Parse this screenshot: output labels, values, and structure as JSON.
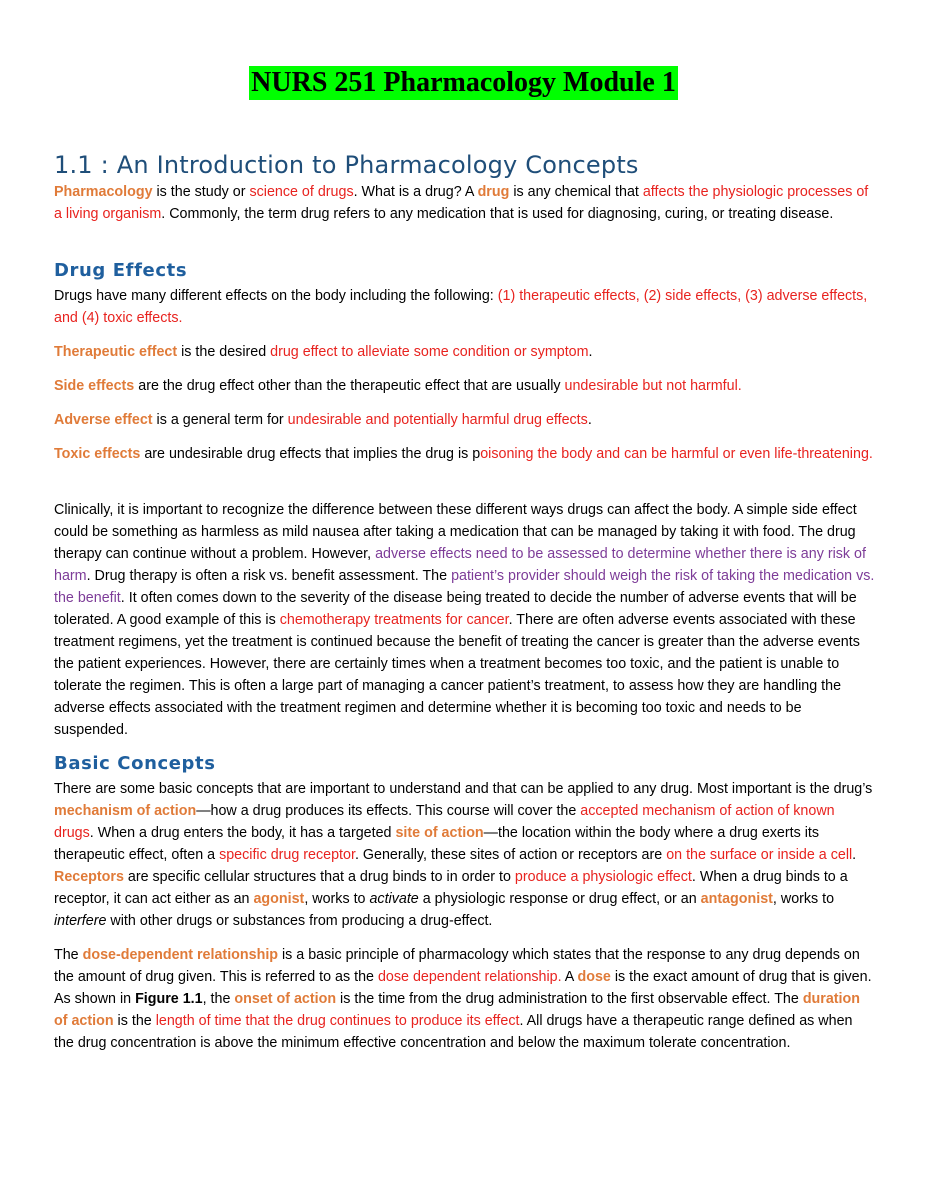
{
  "title": "NURS 251 Pharmacology Module 1",
  "section_heading": "1.1 : An Introduction to Pharmacology Concepts",
  "intro": {
    "t1": "Pharmacology",
    "t2": " is the study or ",
    "t3": "science of drugs",
    "t4": ". What is a drug? A ",
    "t5": "drug",
    "t6": " is any chemical that ",
    "t7": "affects the physiologic processes of a living organism",
    "t8": ". Commonly, the term drug refers to any medication that is used for diagnosing, curing, or treating disease."
  },
  "drug_effects": {
    "heading": "Drug Effects",
    "p1": {
      "t1": "Drugs have many different effects on the body including the following: ",
      "t2": "(1) therapeutic effects, (2) side effects, (3) adverse effects, and (4) toxic effects."
    },
    "therapeutic": {
      "term": "Therapeutic effect",
      "t1": " is the desired ",
      "t2": "drug effect to alleviate some condition or symptom",
      "t3": "."
    },
    "side": {
      "term": "Side effects",
      "t1": " are the drug effect other than the therapeutic effect that are usually ",
      "t2": "undesirable but not harmful."
    },
    "adverse": {
      "term": "Adverse effect",
      "t1": " is a general term for ",
      "t2": "undesirable and potentially harmful drug effects",
      "t3": "."
    },
    "toxic": {
      "term": "Toxic effects",
      "t1": " are undesirable drug effects that implies the drug is p",
      "t2": "oisoning the body and can be harmful or even life-threatening."
    },
    "clinical": {
      "t1": "Clinically, it is important to recognize the difference between these different ways drugs can affect the body. A simple side effect could be something as harmless as mild nausea after taking a medication that can be managed by taking it with food. The drug therapy can continue without a problem. However, ",
      "t2": "adverse effects need to be assessed to determine whether there is any risk of harm",
      "t3": ". Drug therapy is often a risk vs. benefit assessment. The ",
      "t4": "patient’s provider should weigh the risk of taking the medication vs. the benefit",
      "t5": ". It often comes down to the severity of the disease being treated to decide the number of adverse events that will be tolerated. A good example of this is ",
      "t6": "chemotherapy treatments for cancer",
      "t7": ". There are often adverse events associated with these treatment regimens, yet the treatment is continued because the benefit of treating the cancer is greater than the adverse events the patient experiences. However, there are certainly times when a treatment becomes too toxic, and the patient is unable to tolerate the regimen. This is often a large part of managing a cancer patient’s treatment, to assess how they are handling the adverse effects associated with the treatment regimen and determine whether it is becoming too toxic and needs to be suspended."
    }
  },
  "basic_concepts": {
    "heading": "Basic Concepts",
    "p1": {
      "t1": "There are some basic concepts that are important to understand and that can be applied to any drug. Most important is the drug’s ",
      "t2": "mechanism of action",
      "t3": "—how a drug produces its effects. This course will cover the ",
      "t4": "accepted mechanism of action of known drugs",
      "t5": ". When a drug enters the body, it has a targeted ",
      "t6": "site of action",
      "t7": "—the location within the body where a drug exerts its therapeutic effect, often a ",
      "t8": "specific drug receptor",
      "t9": ". Generally, these sites of action or receptors are ",
      "t10": "on the surface or inside a cell",
      "t11": ". ",
      "t12": "Receptors",
      "t13": " are specific cellular structures that a drug binds to in order to ",
      "t14": "produce a physiologic effect",
      "t15": ". When a drug binds to a receptor, it can act either as an ",
      "t16": "agonist",
      "t17": ", works to ",
      "t18": "activate",
      "t19": " a physiologic response or drug effect, or an ",
      "t20": "antagonist",
      "t21": ", works to ",
      "t22": "interfere",
      "t23": " with other drugs or substances from producing a drug-effect."
    },
    "p2": {
      "t1": "The ",
      "t2": "dose-dependent relationship",
      "t3": " is a basic principle of pharmacology which states that the response to any drug depends on the amount of drug given. This is referred to as the ",
      "t4": "dose dependent relationship.",
      "t5": " A ",
      "t6": "dose",
      "t7": " is the exact amount of drug that is given. As shown in ",
      "t8": "Figure 1.1",
      "t9": ", the ",
      "t10": "onset of action",
      "t11": " is the time from the drug administration to the first observable effect. The ",
      "t12": "duration of action",
      "t13": " is the ",
      "t14": "length of time that the drug continues to produce its effect",
      "t15": ". All drugs have a therapeutic range defined as when the drug concentration is above the minimum effective concentration and below the maximum tolerate concentration."
    }
  },
  "colors": {
    "title_highlight": "#00ff00",
    "heading": "#1f4e79",
    "subheading": "#1f5f9e",
    "term": "#e07b39",
    "emphasis_red": "#e8231f",
    "emphasis_purple": "#7d3c98"
  }
}
